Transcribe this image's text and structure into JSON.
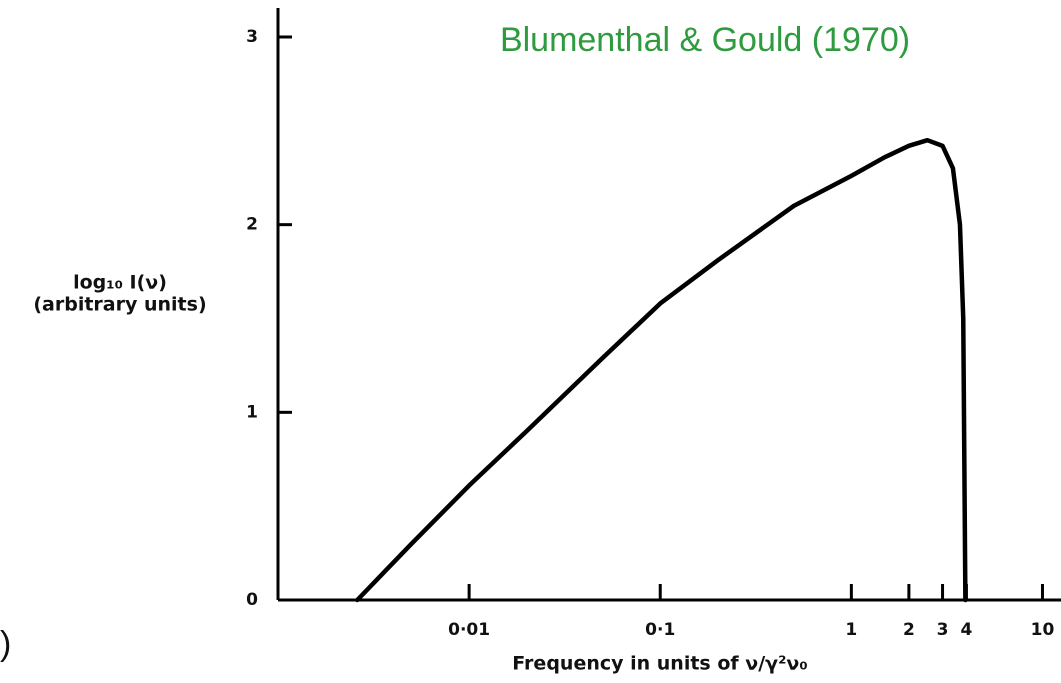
{
  "chart_data": {
    "type": "line",
    "xlabel": "Frequency in units of ν/γ²ν₀",
    "ylabel": [
      "log₁₀ I(ν)",
      "(arbitrary units)"
    ],
    "annotations": [
      "Blumenthal & Gould (1970)",
      ")"
    ],
    "x": [
      0.0026,
      0.005,
      0.01,
      0.02,
      0.05,
      0.1,
      0.2,
      0.5,
      1,
      1.5,
      2,
      2.5,
      3,
      3.4,
      3.7,
      3.85,
      3.95
    ],
    "values": [
      0,
      0.3,
      0.61,
      0.9,
      1.29,
      1.58,
      1.81,
      2.1,
      2.26,
      2.36,
      2.42,
      2.45,
      2.42,
      2.3,
      2.0,
      1.5,
      0
    ],
    "color": "#000000",
    "xscale": "log",
    "xlim": [
      0.001,
      12.5
    ],
    "ylim": [
      0,
      3.05
    ],
    "xticks": [
      {
        "value": 0.01,
        "label": "0·01"
      },
      {
        "value": 0.1,
        "label": "0·1"
      },
      1,
      2,
      3,
      4,
      10
    ],
    "yticks": [
      0,
      1,
      2,
      3
    ]
  }
}
